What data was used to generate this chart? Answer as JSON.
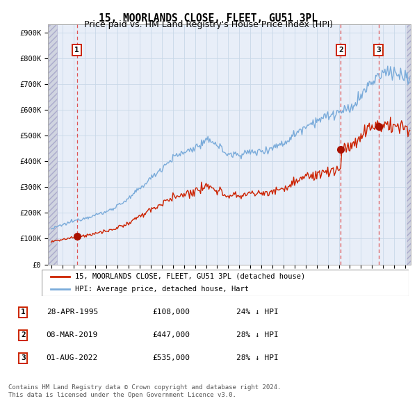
{
  "title": "15, MOORLANDS CLOSE, FLEET, GU51 3PL",
  "subtitle": "Price paid vs. HM Land Registry's House Price Index (HPI)",
  "ylabel_ticks": [
    "£0",
    "£100K",
    "£200K",
    "£300K",
    "£400K",
    "£500K",
    "£600K",
    "£700K",
    "£800K",
    "£900K"
  ],
  "ytick_values": [
    0,
    100000,
    200000,
    300000,
    400000,
    500000,
    600000,
    700000,
    800000,
    900000
  ],
  "ylim": [
    0,
    930000
  ],
  "xlim_start": 1992.7,
  "xlim_end": 2025.5,
  "sale_dates": [
    1995.32,
    2019.18,
    2022.58
  ],
  "sale_prices": [
    108000,
    447000,
    535000
  ],
  "sale_labels": [
    "1",
    "2",
    "3"
  ],
  "hpi_line_color": "#7aabda",
  "sale_line_color": "#cc2200",
  "sale_dot_color": "#aa1100",
  "dashed_line_color": "#dd4444",
  "grid_color": "#c8d8e8",
  "bg_color": "#e8eef8",
  "hatch_color": "#c8ccd8",
  "legend_label_red": "15, MOORLANDS CLOSE, FLEET, GU51 3PL (detached house)",
  "legend_label_blue": "HPI: Average price, detached house, Hart",
  "table_rows": [
    [
      "1",
      "28-APR-1995",
      "£108,000",
      "24% ↓ HPI"
    ],
    [
      "2",
      "08-MAR-2019",
      "£447,000",
      "28% ↓ HPI"
    ],
    [
      "3",
      "01-AUG-2022",
      "£535,000",
      "28% ↓ HPI"
    ]
  ],
  "footer_text": "Contains HM Land Registry data © Crown copyright and database right 2024.\nThis data is licensed under the Open Government Licence v3.0.",
  "title_fontsize": 10.5,
  "subtitle_fontsize": 9,
  "axis_fontsize": 7.5,
  "legend_fontsize": 7.5,
  "table_fontsize": 8,
  "footer_fontsize": 6.5
}
